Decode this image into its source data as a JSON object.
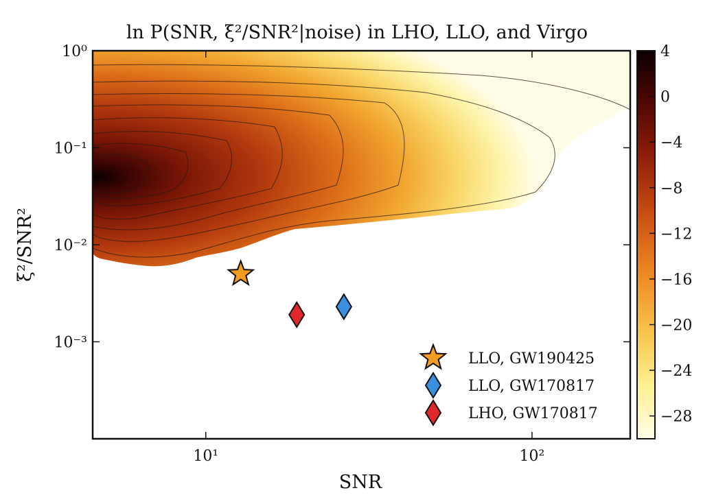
{
  "chart_data": {
    "type": "heatmap",
    "title": "ln P(SNR, ξ²/SNR²|noise) in LHO, LLO, and Virgo",
    "xlabel": "SNR",
    "ylabel": "ξ²/SNR²",
    "x_scale": "log",
    "y_scale": "log",
    "xlim": [
      4.5,
      200
    ],
    "ylim": [
      0.0001,
      1
    ],
    "x_ticks": [
      {
        "value": 10,
        "label": "10¹"
      },
      {
        "value": 100,
        "label": "10²"
      }
    ],
    "y_ticks": [
      {
        "value": 1,
        "label": "10⁰"
      },
      {
        "value": 0.1,
        "label": "10⁻¹"
      },
      {
        "value": 0.01,
        "label": "10⁻²"
      },
      {
        "value": 0.001,
        "label": "10⁻³"
      }
    ],
    "colorbar": {
      "range": [
        -30,
        4
      ],
      "ticks": [
        4,
        0,
        -4,
        -8,
        -12,
        -16,
        -20,
        -24,
        -28
      ],
      "tick_labels": [
        "4",
        "0",
        "−4",
        "−8",
        "−12",
        "−16",
        "−20",
        "−24",
        "−28"
      ],
      "colormap": "afmhot_r"
    },
    "density_peak": {
      "x": 4.7,
      "y": 0.055
    },
    "series": [
      {
        "name": "LLO, GW190425",
        "marker": "star",
        "color": "#f39c1f",
        "points": [
          {
            "x": 12.8,
            "y": 0.005
          }
        ]
      },
      {
        "name": "LLO, GW170817",
        "marker": "diamond",
        "color": "#3a8fe0",
        "points": [
          {
            "x": 26.5,
            "y": 0.0023
          }
        ]
      },
      {
        "name": "LHO, GW170817",
        "marker": "diamond",
        "color": "#e0282a",
        "points": [
          {
            "x": 19,
            "y": 0.0019
          }
        ]
      }
    ],
    "legend_position": "lower-right",
    "grid": false
  }
}
